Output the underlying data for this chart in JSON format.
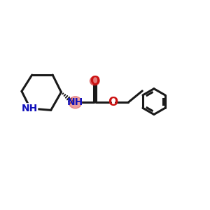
{
  "bg_color": "#ffffff",
  "bond_color": "#1a1a1a",
  "bond_width": 2.2,
  "nh_highlight_color": "#e06060",
  "nh_highlight_alpha": 0.6,
  "n_color_blue": "#1111bb",
  "o_color_red": "#cc1111",
  "figsize": [
    3.0,
    3.0
  ],
  "dpi": 100,
  "xlim": [
    0,
    12
  ],
  "ylim": [
    0,
    10
  ]
}
